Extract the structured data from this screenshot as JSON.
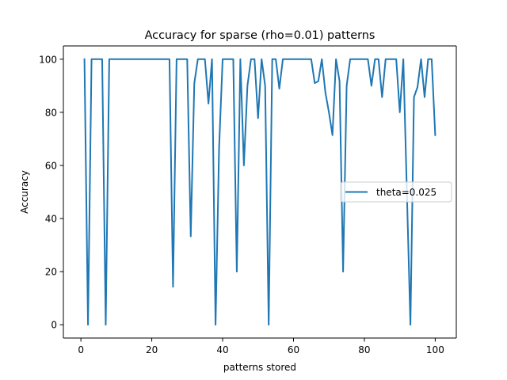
{
  "chart_data": {
    "type": "line",
    "title": "Accuracy for sparse (rho=0.01) patterns",
    "xlabel": "patterns stored",
    "ylabel": "Accuracy",
    "xlim": [
      -4.95,
      105.95
    ],
    "ylim": [
      -5,
      105
    ],
    "xticks": [
      0,
      20,
      40,
      60,
      80,
      100
    ],
    "yticks": [
      0,
      20,
      40,
      60,
      80,
      100
    ],
    "grid": false,
    "legend_position": "center-right",
    "series": [
      {
        "name": "theta=0.025",
        "color": "#1f77b4",
        "x": [
          1,
          2,
          3,
          4,
          5,
          6,
          7,
          8,
          9,
          10,
          11,
          12,
          13,
          14,
          15,
          16,
          17,
          18,
          19,
          20,
          21,
          22,
          23,
          24,
          25,
          26,
          27,
          28,
          29,
          30,
          31,
          32,
          33,
          34,
          35,
          36,
          37,
          38,
          39,
          40,
          41,
          42,
          43,
          44,
          45,
          46,
          47,
          48,
          49,
          50,
          51,
          52,
          53,
          54,
          55,
          56,
          57,
          58,
          59,
          60,
          61,
          62,
          63,
          64,
          65,
          66,
          67,
          68,
          69,
          70,
          71,
          72,
          73,
          74,
          75,
          76,
          77,
          78,
          79,
          80,
          81,
          82,
          83,
          84,
          85,
          86,
          87,
          88,
          89,
          90,
          91,
          92,
          93,
          94,
          95,
          96,
          97,
          98,
          99,
          100
        ],
        "y": [
          100,
          0,
          100,
          100,
          100,
          100,
          0,
          100,
          100,
          100,
          100,
          100,
          100,
          100,
          100,
          100,
          100,
          100,
          100,
          100,
          100,
          100,
          100,
          100,
          100,
          14.3,
          100,
          100,
          100,
          100,
          33.3,
          90.9,
          100,
          100,
          100,
          83.3,
          100,
          0,
          66.7,
          100,
          100,
          100,
          100,
          20,
          100,
          60,
          90,
          100,
          100,
          77.8,
          100,
          90,
          0,
          100,
          100,
          88.9,
          100,
          100,
          100,
          100,
          100,
          100,
          100,
          100,
          100,
          91,
          91.7,
          100,
          87.5,
          80,
          71.4,
          100,
          91.7,
          20,
          90,
          100,
          100,
          100,
          100,
          100,
          100,
          90,
          100,
          100,
          85.7,
          100,
          100,
          100,
          100,
          80,
          100,
          50,
          0,
          85.7,
          89.5,
          100,
          85.7,
          100,
          100,
          71.4
        ]
      }
    ]
  }
}
